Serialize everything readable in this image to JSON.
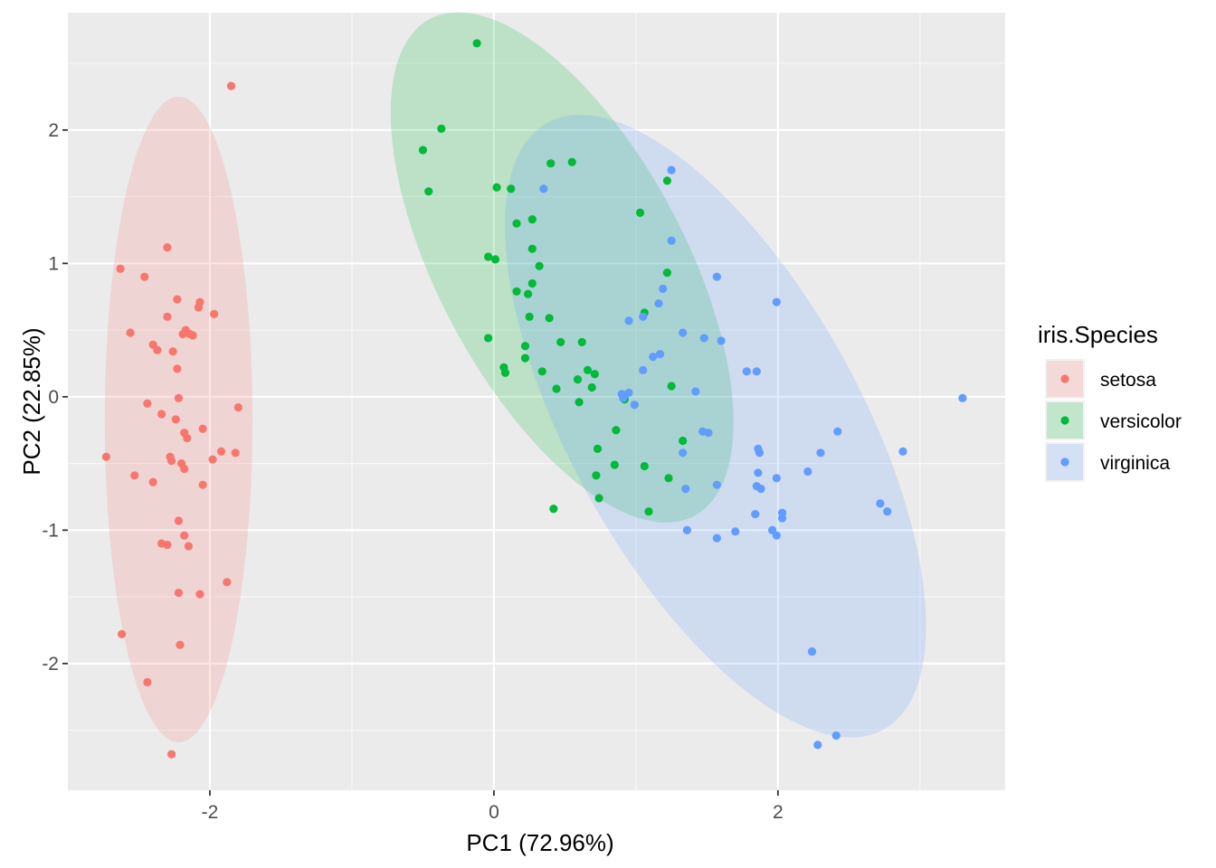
{
  "chart_data": {
    "type": "scatter",
    "title": "",
    "xlabel": "PC1 (72.96%)",
    "ylabel": "PC2 (22.85%)",
    "xlim": [
      -3.0,
      3.6
    ],
    "ylim": [
      -2.95,
      2.88
    ],
    "xticks": [
      -2,
      0,
      2
    ],
    "xtick_labels": [
      "-2",
      "0",
      "2"
    ],
    "yticks": [
      -2,
      -1,
      0,
      1,
      2
    ],
    "ytick_labels": [
      "-2",
      "-1",
      "0",
      "1",
      "2"
    ],
    "grid": true,
    "legend": {
      "title": "iris.Species",
      "position": "right",
      "entries": [
        "setosa",
        "versicolor",
        "virginica"
      ]
    },
    "series": [
      {
        "name": "setosa",
        "color": "#F8766D",
        "ellipse": {
          "cx": -2.22,
          "cy": -0.17,
          "rx": 0.52,
          "ry": 2.42,
          "angle": 0
        },
        "points": [
          [
            -1.85,
            2.33
          ],
          [
            -2.3,
            1.12
          ],
          [
            -2.63,
            0.96
          ],
          [
            -2.46,
            0.9
          ],
          [
            -2.23,
            0.73
          ],
          [
            -2.07,
            0.71
          ],
          [
            -2.08,
            0.67
          ],
          [
            -1.97,
            0.62
          ],
          [
            -2.3,
            0.6
          ],
          [
            -2.56,
            0.48
          ],
          [
            -2.17,
            0.5
          ],
          [
            -2.14,
            0.47
          ],
          [
            -2.12,
            0.46
          ],
          [
            -2.19,
            0.47
          ],
          [
            -2.4,
            0.39
          ],
          [
            -2.37,
            0.35
          ],
          [
            -2.26,
            0.34
          ],
          [
            -2.23,
            0.21
          ],
          [
            -2.44,
            -0.05
          ],
          [
            -2.22,
            -0.01
          ],
          [
            -1.8,
            -0.08
          ],
          [
            -2.34,
            -0.13
          ],
          [
            -2.24,
            -0.17
          ],
          [
            -2.05,
            -0.24
          ],
          [
            -2.18,
            -0.27
          ],
          [
            -2.16,
            -0.31
          ],
          [
            -1.92,
            -0.41
          ],
          [
            -1.82,
            -0.42
          ],
          [
            -2.73,
            -0.45
          ],
          [
            -2.28,
            -0.45
          ],
          [
            -1.98,
            -0.47
          ],
          [
            -2.27,
            -0.48
          ],
          [
            -2.2,
            -0.5
          ],
          [
            -2.18,
            -0.54
          ],
          [
            -2.53,
            -0.59
          ],
          [
            -2.4,
            -0.64
          ],
          [
            -2.05,
            -0.66
          ],
          [
            -2.22,
            -0.93
          ],
          [
            -2.18,
            -1.04
          ],
          [
            -2.34,
            -1.1
          ],
          [
            -2.3,
            -1.11
          ],
          [
            -2.15,
            -1.12
          ],
          [
            -1.88,
            -1.39
          ],
          [
            -2.07,
            -1.48
          ],
          [
            -2.22,
            -1.47
          ],
          [
            -2.62,
            -1.78
          ],
          [
            -2.21,
            -1.86
          ],
          [
            -2.44,
            -2.14
          ],
          [
            -2.27,
            -2.68
          ]
        ]
      },
      {
        "name": "versicolor",
        "color": "#00BA38",
        "ellipse": {
          "cx": 0.48,
          "cy": 0.97,
          "rx": 0.87,
          "ry": 2.11,
          "angle": -28
        },
        "points": [
          [
            -0.12,
            2.65
          ],
          [
            -0.37,
            2.01
          ],
          [
            -0.5,
            1.85
          ],
          [
            -0.46,
            1.54
          ],
          [
            0.4,
            1.75
          ],
          [
            0.55,
            1.76
          ],
          [
            0.02,
            1.57
          ],
          [
            0.12,
            1.56
          ],
          [
            1.22,
            1.62
          ],
          [
            0.16,
            1.3
          ],
          [
            0.27,
            1.33
          ],
          [
            1.03,
            1.38
          ],
          [
            0.27,
            1.11
          ],
          [
            -0.04,
            1.05
          ],
          [
            0.01,
            1.03
          ],
          [
            0.32,
            0.98
          ],
          [
            1.22,
            0.93
          ],
          [
            0.16,
            0.79
          ],
          [
            0.24,
            0.77
          ],
          [
            0.27,
            0.85
          ],
          [
            1.06,
            0.63
          ],
          [
            0.39,
            0.59
          ],
          [
            0.25,
            0.6
          ],
          [
            -0.04,
            0.44
          ],
          [
            0.47,
            0.41
          ],
          [
            0.62,
            0.41
          ],
          [
            0.22,
            0.38
          ],
          [
            0.22,
            0.29
          ],
          [
            0.07,
            0.22
          ],
          [
            0.08,
            0.18
          ],
          [
            0.34,
            0.19
          ],
          [
            0.66,
            0.2
          ],
          [
            0.71,
            0.17
          ],
          [
            0.59,
            0.13
          ],
          [
            0.44,
            0.06
          ],
          [
            0.69,
            0.07
          ],
          [
            1.25,
            0.08
          ],
          [
            0.6,
            -0.04
          ],
          [
            0.92,
            -0.02
          ],
          [
            0.86,
            -0.25
          ],
          [
            1.33,
            -0.33
          ],
          [
            0.73,
            -0.39
          ],
          [
            0.85,
            -0.51
          ],
          [
            1.06,
            -0.52
          ],
          [
            0.72,
            -0.59
          ],
          [
            1.23,
            -0.61
          ],
          [
            0.74,
            -0.76
          ],
          [
            1.09,
            -0.86
          ],
          [
            0.42,
            -0.84
          ]
        ]
      },
      {
        "name": "virginica",
        "color": "#619CFF",
        "ellipse": {
          "cx": 1.56,
          "cy": -0.22,
          "rx": 1.02,
          "ry": 2.6,
          "angle": -29
        },
        "points": [
          [
            1.25,
            1.7
          ],
          [
            0.35,
            1.56
          ],
          [
            1.25,
            1.17
          ],
          [
            1.57,
            0.9
          ],
          [
            1.99,
            0.71
          ],
          [
            1.19,
            0.81
          ],
          [
            1.16,
            0.7
          ],
          [
            1.05,
            0.6
          ],
          [
            0.95,
            0.57
          ],
          [
            1.33,
            0.48
          ],
          [
            1.48,
            0.44
          ],
          [
            1.6,
            0.42
          ],
          [
            1.12,
            0.3
          ],
          [
            1.17,
            0.32
          ],
          [
            1.05,
            0.2
          ],
          [
            1.85,
            0.19
          ],
          [
            1.78,
            0.19
          ],
          [
            1.42,
            0.04
          ],
          [
            0.95,
            0.03
          ],
          [
            0.91,
            -0.01
          ],
          [
            0.9,
            0.02
          ],
          [
            0.99,
            -0.06
          ],
          [
            1.47,
            -0.26
          ],
          [
            1.51,
            -0.27
          ],
          [
            2.42,
            -0.26
          ],
          [
            1.86,
            -0.39
          ],
          [
            1.87,
            -0.42
          ],
          [
            1.33,
            -0.42
          ],
          [
            2.3,
            -0.42
          ],
          [
            2.88,
            -0.41
          ],
          [
            2.21,
            -0.56
          ],
          [
            1.86,
            -0.57
          ],
          [
            1.99,
            -0.61
          ],
          [
            1.85,
            -0.67
          ],
          [
            1.88,
            -0.69
          ],
          [
            1.35,
            -0.69
          ],
          [
            1.57,
            -0.66
          ],
          [
            2.72,
            -0.8
          ],
          [
            2.77,
            -0.86
          ],
          [
            2.03,
            -0.87
          ],
          [
            2.03,
            -0.91
          ],
          [
            1.84,
            -0.88
          ],
          [
            1.7,
            -1.01
          ],
          [
            1.96,
            -1.0
          ],
          [
            1.99,
            -1.04
          ],
          [
            1.36,
            -1.0
          ],
          [
            1.57,
            -1.06
          ],
          [
            2.24,
            -1.91
          ],
          [
            2.28,
            -2.61
          ],
          [
            2.41,
            -2.54
          ],
          [
            3.3,
            -0.01
          ]
        ]
      }
    ]
  }
}
